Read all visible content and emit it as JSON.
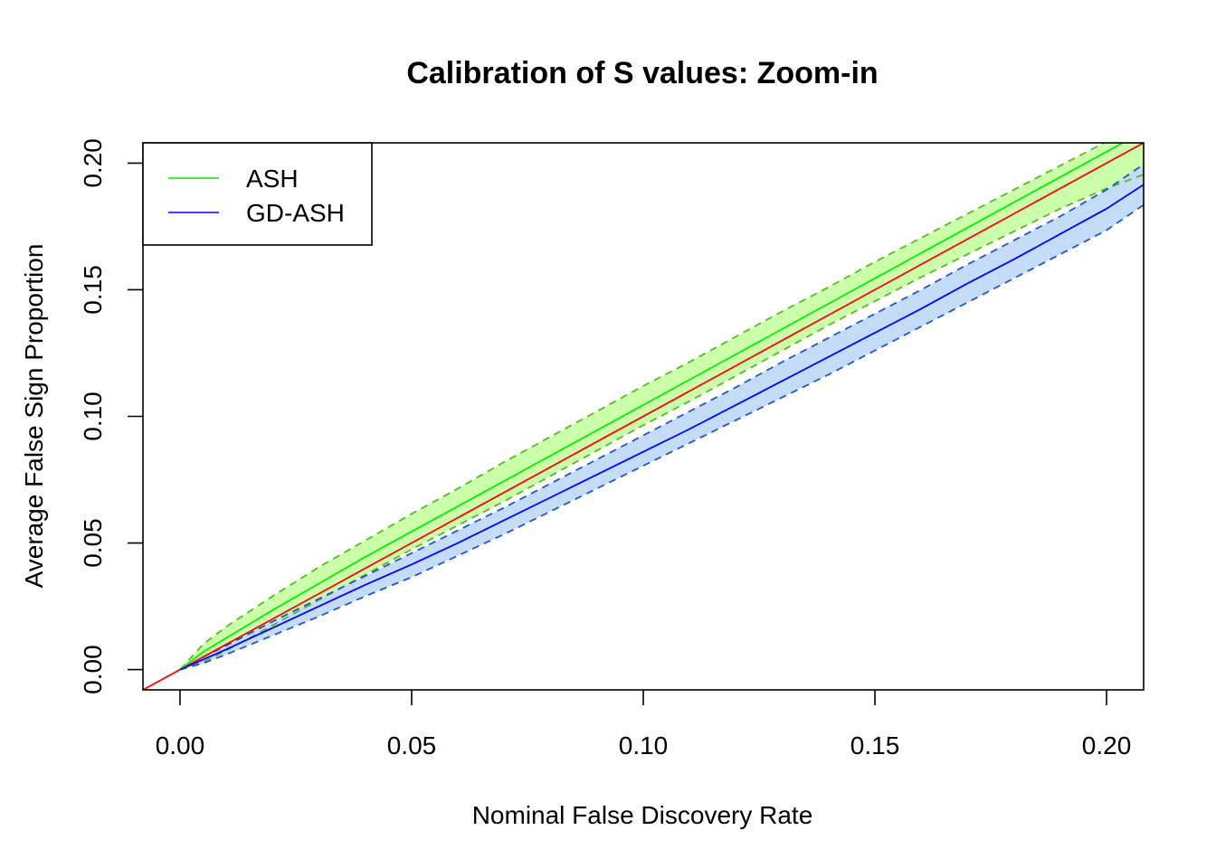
{
  "chart_data": {
    "type": "line",
    "title": "Calibration of S values: Zoom-in",
    "xlabel": "Nominal False Discovery Rate",
    "ylabel": "Average False Sign Proportion",
    "xlim": [
      -0.008,
      0.208
    ],
    "ylim": [
      -0.008,
      0.208
    ],
    "xticks": [
      0.0,
      0.05,
      0.1,
      0.15,
      0.2
    ],
    "xtick_labels": [
      "0.00",
      "0.05",
      "0.10",
      "0.15",
      "0.20"
    ],
    "yticks": [
      0.0,
      0.05,
      0.1,
      0.15,
      0.2
    ],
    "ytick_labels": [
      "0.00",
      "0.05",
      "0.10",
      "0.15",
      "0.20"
    ],
    "legend_position": "top-left",
    "grid": false,
    "x": [
      0.0,
      0.005,
      0.01,
      0.02,
      0.03,
      0.04,
      0.05,
      0.06,
      0.07,
      0.08,
      0.09,
      0.1,
      0.11,
      0.12,
      0.13,
      0.14,
      0.15,
      0.16,
      0.17,
      0.18,
      0.19,
      0.2,
      0.208
    ],
    "series": [
      {
        "name": "ASH",
        "color": "#00ee00",
        "band_color": "#ccffaa",
        "band_edge_color": "#55bb22",
        "values": [
          0.0,
          0.007,
          0.0125,
          0.0235,
          0.034,
          0.0445,
          0.0545,
          0.0645,
          0.0745,
          0.0845,
          0.0945,
          0.1045,
          0.1145,
          0.1245,
          0.1345,
          0.1445,
          0.1545,
          0.1645,
          0.1745,
          0.1845,
          0.1945,
          0.2045,
          0.2125
        ],
        "upper": [
          0.0,
          0.01,
          0.017,
          0.029,
          0.0405,
          0.051,
          0.0615,
          0.0715,
          0.082,
          0.092,
          0.102,
          0.112,
          0.1215,
          0.1315,
          0.1415,
          0.151,
          0.161,
          0.1705,
          0.18,
          0.1895,
          0.199,
          0.2085,
          0.216
        ],
        "lower": [
          0.0,
          0.003,
          0.0075,
          0.0175,
          0.0275,
          0.0375,
          0.0475,
          0.057,
          0.0665,
          0.0765,
          0.0865,
          0.0965,
          0.106,
          0.116,
          0.126,
          0.136,
          0.1455,
          0.155,
          0.164,
          0.173,
          0.182,
          0.19,
          0.1955
        ]
      },
      {
        "name": "GD-ASH",
        "color": "#0000ff",
        "band_color": "#c4dcf8",
        "band_edge_color": "#2255cc",
        "values": [
          0.0,
          0.004,
          0.008,
          0.0165,
          0.025,
          0.0335,
          0.0415,
          0.05,
          0.059,
          0.068,
          0.077,
          0.086,
          0.095,
          0.1045,
          0.114,
          0.1235,
          0.133,
          0.1425,
          0.1525,
          0.162,
          0.172,
          0.182,
          0.1915
        ],
        "upper": [
          0.0,
          0.005,
          0.0095,
          0.019,
          0.028,
          0.037,
          0.046,
          0.055,
          0.064,
          0.0735,
          0.083,
          0.0925,
          0.102,
          0.1115,
          0.1215,
          0.131,
          0.1405,
          0.15,
          0.16,
          0.1695,
          0.179,
          0.1895,
          0.1995
        ],
        "lower": [
          0.0,
          0.0025,
          0.006,
          0.0135,
          0.021,
          0.029,
          0.0365,
          0.045,
          0.0535,
          0.0625,
          0.0715,
          0.0805,
          0.0895,
          0.0985,
          0.1075,
          0.1165,
          0.126,
          0.1355,
          0.145,
          0.1545,
          0.164,
          0.1735,
          0.1835
        ]
      }
    ],
    "reference_line": {
      "slope": 1,
      "intercept": 0,
      "color": "#ff0000"
    }
  }
}
